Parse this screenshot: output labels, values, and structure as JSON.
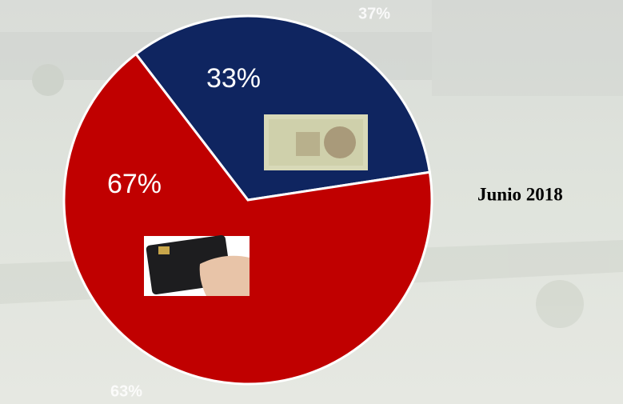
{
  "chart_data": {
    "type": "pie",
    "values": [
      33,
      67
    ],
    "value_labels": [
      "33%",
      "67%"
    ],
    "colors": [
      "#0f2560",
      "#c00000"
    ],
    "annotations": [
      "37%",
      "63%"
    ],
    "subtitle": "Junio 2018"
  }
}
